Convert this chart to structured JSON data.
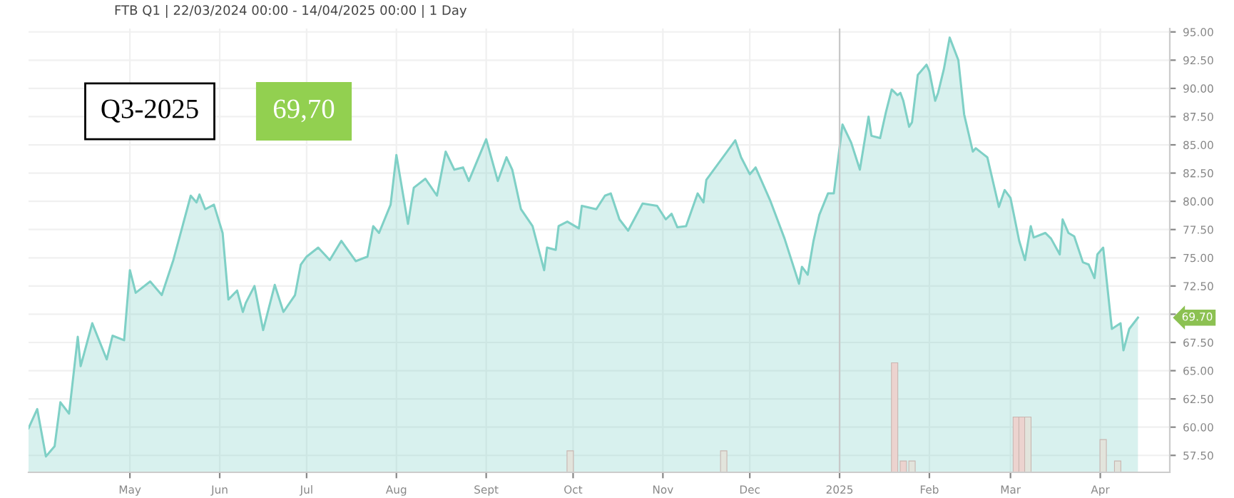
{
  "chart_data": {
    "type": "area",
    "title": "FTB Q1 | 22/03/2024 00:00 - 14/04/2025 00:00 | 1 Day",
    "x": [
      "2024-03-27",
      "2024-03-30",
      "2024-04-02",
      "2024-04-05",
      "2024-04-07",
      "2024-04-10",
      "2024-04-13",
      "2024-04-14",
      "2024-04-18",
      "2024-04-23",
      "2024-04-25",
      "2024-04-29",
      "2024-05-01",
      "2024-05-03",
      "2024-05-08",
      "2024-05-12",
      "2024-05-16",
      "2024-05-22",
      "2024-05-24",
      "2024-05-25",
      "2024-05-27",
      "2024-05-30",
      "2024-06-02",
      "2024-06-04",
      "2024-06-07",
      "2024-06-09",
      "2024-06-10",
      "2024-06-13",
      "2024-06-16",
      "2024-06-20",
      "2024-06-23",
      "2024-06-27",
      "2024-06-29",
      "2024-07-01",
      "2024-07-05",
      "2024-07-09",
      "2024-07-13",
      "2024-07-18",
      "2024-07-22",
      "2024-07-24",
      "2024-07-26",
      "2024-07-30",
      "2024-08-01",
      "2024-08-05",
      "2024-08-07",
      "2024-08-11",
      "2024-08-15",
      "2024-08-18",
      "2024-08-21",
      "2024-08-24",
      "2024-08-26",
      "2024-09-01",
      "2024-09-05",
      "2024-09-08",
      "2024-09-10",
      "2024-09-13",
      "2024-09-17",
      "2024-09-21",
      "2024-09-22",
      "2024-09-25",
      "2024-09-26",
      "2024-09-29",
      "2024-10-03",
      "2024-10-04",
      "2024-10-09",
      "2024-10-12",
      "2024-10-14",
      "2024-10-17",
      "2024-10-20",
      "2024-10-25",
      "2024-10-30",
      "2024-11-02",
      "2024-11-04",
      "2024-11-06",
      "2024-11-09",
      "2024-11-13",
      "2024-11-15",
      "2024-11-16",
      "2024-11-26",
      "2024-11-28",
      "2024-12-01",
      "2024-12-03",
      "2024-12-08",
      "2024-12-13",
      "2024-12-18",
      "2024-12-19",
      "2024-12-21",
      "2024-12-23",
      "2024-12-25",
      "2024-12-28",
      "2024-12-30",
      "2025-01-02",
      "2025-01-05",
      "2025-01-08",
      "2025-01-11",
      "2025-01-12",
      "2025-01-15",
      "2025-01-17",
      "2025-01-19",
      "2025-01-21",
      "2025-01-22",
      "2025-01-23",
      "2025-01-25",
      "2025-01-26",
      "2025-01-28",
      "2025-01-31",
      "2025-02-01",
      "2025-02-03",
      "2025-02-04",
      "2025-02-06",
      "2025-02-08",
      "2025-02-11",
      "2025-02-13",
      "2025-02-16",
      "2025-02-17",
      "2025-02-19",
      "2025-02-21",
      "2025-02-25",
      "2025-02-27",
      "2025-03-01",
      "2025-03-04",
      "2025-03-06",
      "2025-03-08",
      "2025-03-09",
      "2025-03-13",
      "2025-03-15",
      "2025-03-18",
      "2025-03-19",
      "2025-03-21",
      "2025-03-23",
      "2025-03-26",
      "2025-03-28",
      "2025-03-30",
      "2025-03-31",
      "2025-04-02",
      "2025-04-05",
      "2025-04-08",
      "2025-04-09",
      "2025-04-11",
      "2025-04-14"
    ],
    "series": [
      {
        "color": "#7fd0c6",
        "values": [
          59.9,
          61.6,
          57.4,
          58.3,
          62.2,
          61.2,
          68.0,
          65.4,
          69.2,
          66.0,
          68.1,
          67.7,
          73.9,
          71.9,
          72.9,
          71.7,
          74.8,
          80.5,
          79.9,
          80.6,
          79.3,
          79.7,
          77.2,
          71.3,
          72.1,
          70.2,
          71.0,
          72.5,
          68.6,
          72.6,
          70.2,
          71.7,
          74.4,
          75.1,
          75.9,
          74.8,
          76.5,
          74.7,
          75.1,
          77.8,
          77.2,
          79.7,
          84.1,
          78.0,
          81.2,
          82.0,
          80.5,
          84.4,
          82.8,
          83.0,
          81.8,
          85.5,
          81.8,
          83.9,
          82.8,
          79.3,
          77.8,
          73.9,
          75.9,
          75.7,
          77.8,
          78.2,
          77.6,
          79.6,
          79.3,
          80.5,
          80.7,
          78.4,
          77.4,
          79.8,
          79.6,
          78.4,
          78.9,
          77.7,
          77.8,
          80.7,
          79.9,
          81.9,
          85.4,
          83.9,
          82.4,
          83.0,
          80.1,
          76.7,
          72.7,
          74.2,
          73.5,
          76.5,
          78.8,
          80.7,
          80.7,
          86.8,
          85.2,
          82.8,
          87.5,
          85.8,
          85.6,
          87.9,
          89.9,
          89.4,
          89.6,
          88.9,
          86.6,
          87.0,
          91.2,
          92.1,
          91.5,
          88.9,
          89.6,
          91.7,
          94.5,
          92.5,
          87.7,
          84.4,
          84.7,
          84.3,
          83.9,
          79.5,
          81.0,
          80.3,
          76.5,
          74.8,
          77.8,
          76.8,
          77.2,
          76.7,
          75.3,
          78.4,
          77.2,
          76.9,
          74.6,
          74.4,
          73.2,
          75.3,
          75.9,
          68.7,
          69.2,
          66.8,
          68.7,
          69.7
        ]
      },
      {
        "type": "bar",
        "x": [
          "2024-09-30",
          "2024-11-22",
          "2025-01-20",
          "2025-01-23",
          "2025-01-26",
          "2025-03-03",
          "2025-03-05",
          "2025-03-07",
          "2025-04-02",
          "2025-04-07"
        ],
        "values": [
          57.9,
          57.9,
          65.7,
          57.0,
          57.0,
          60.9,
          60.9,
          60.9,
          58.9,
          57.0
        ],
        "colors": [
          "#e2e4dc",
          "#e2e4dc",
          "#ecd3cf",
          "#ecd3cf",
          "#e2e4dc",
          "#ecd3cf",
          "#ecd3cf",
          "#e2e4dc",
          "#e2e4dc",
          "#e2e4dc"
        ]
      }
    ],
    "xlim": [
      "2024-03-27",
      "2025-04-25"
    ],
    "xticks": [
      {
        "value": "2024-05-01",
        "label": "May"
      },
      {
        "value": "2024-06-01",
        "label": "Jun"
      },
      {
        "value": "2024-07-01",
        "label": "Jul"
      },
      {
        "value": "2024-08-01",
        "label": "Aug"
      },
      {
        "value": "2024-09-01",
        "label": "Sept"
      },
      {
        "value": "2024-10-01",
        "label": "Oct"
      },
      {
        "value": "2024-11-01",
        "label": "Nov"
      },
      {
        "value": "2024-12-01",
        "label": "Dec"
      },
      {
        "value": "2025-01-01",
        "label": "2025"
      },
      {
        "value": "2025-02-01",
        "label": "Feb"
      },
      {
        "value": "2025-03-01",
        "label": "Mar"
      },
      {
        "value": "2025-04-01",
        "label": "Apr"
      }
    ],
    "ylim": [
      56,
      95.3
    ],
    "yticks": [
      {
        "value": 57.5,
        "label": "57.50"
      },
      {
        "value": 60,
        "label": "60.00"
      },
      {
        "value": 62.5,
        "label": "62.50"
      },
      {
        "value": 65,
        "label": "65.00"
      },
      {
        "value": 67.5,
        "label": "67.50"
      },
      {
        "value": 70,
        "label": null
      },
      {
        "value": 72.5,
        "label": "72.50"
      },
      {
        "value": 75,
        "label": "75.00"
      },
      {
        "value": 77.5,
        "label": "77.50"
      },
      {
        "value": 80,
        "label": "80.00"
      },
      {
        "value": 82.5,
        "label": "82.50"
      },
      {
        "value": 85,
        "label": "85.00"
      },
      {
        "value": 87.5,
        "label": "87.50"
      },
      {
        "value": 90,
        "label": "90.00"
      },
      {
        "value": 92.5,
        "label": "92.50"
      },
      {
        "value": 95,
        "label": "95.00"
      }
    ],
    "ref_lines": [
      {
        "axis": "x",
        "value": "2025-01-01",
        "color": "#c8c8c8"
      }
    ],
    "annotations": [
      "Q3-2025",
      "69,70",
      "69.70"
    ],
    "grid": true,
    "legend": false,
    "marker": "none"
  }
}
